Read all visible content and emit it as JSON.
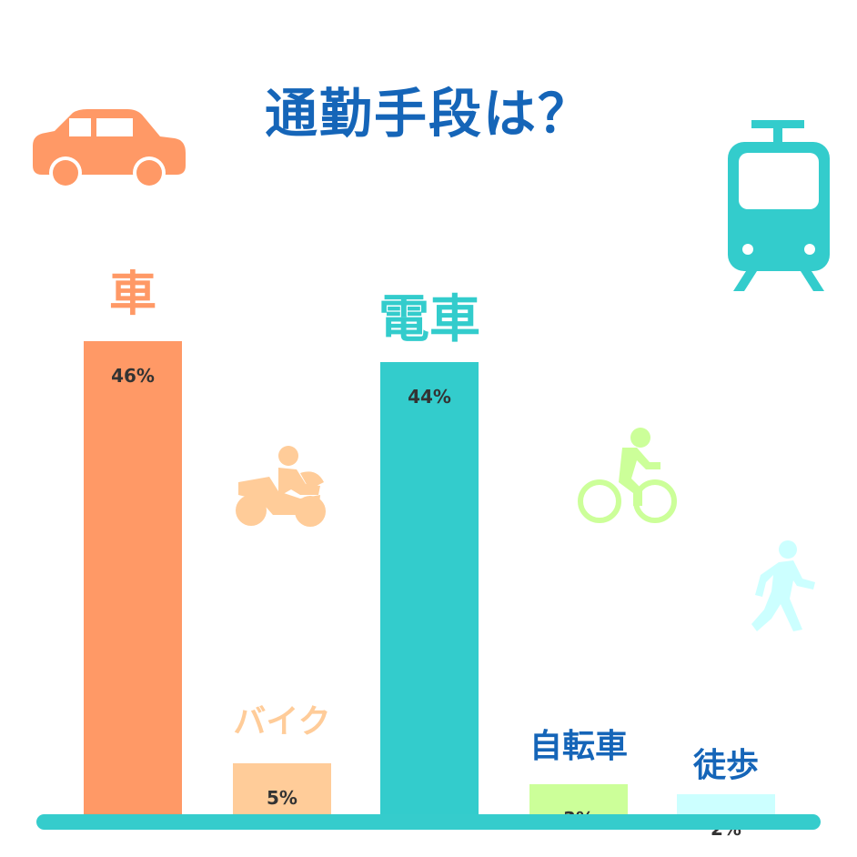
{
  "title": "通勤手段は？",
  "colors": {
    "title": "#1565b8",
    "baseline": "#35cccc",
    "value_text": "#333333"
  },
  "chart_data": {
    "type": "bar",
    "title": "通勤手段は？",
    "categories": [
      "車",
      "バイク",
      "電車",
      "自転車",
      "徒歩"
    ],
    "values": [
      46,
      5,
      44,
      3,
      2
    ],
    "value_labels": [
      "46%",
      "5%",
      "44%",
      "3%",
      "2%"
    ],
    "bar_colors": [
      "#ff9966",
      "#ffcc99",
      "#33cccc",
      "#ccff99",
      "#ccffff"
    ],
    "label_colors": [
      "#ff9966",
      "#ffcc99",
      "#33cccc",
      "#1565b8",
      "#1565b8"
    ],
    "icons": [
      "car-icon",
      "motorcycle-icon",
      "train-icon",
      "bicycle-icon",
      "walking-person-icon"
    ],
    "ylim": [
      0,
      47
    ],
    "grid": false,
    "legend": "none"
  }
}
